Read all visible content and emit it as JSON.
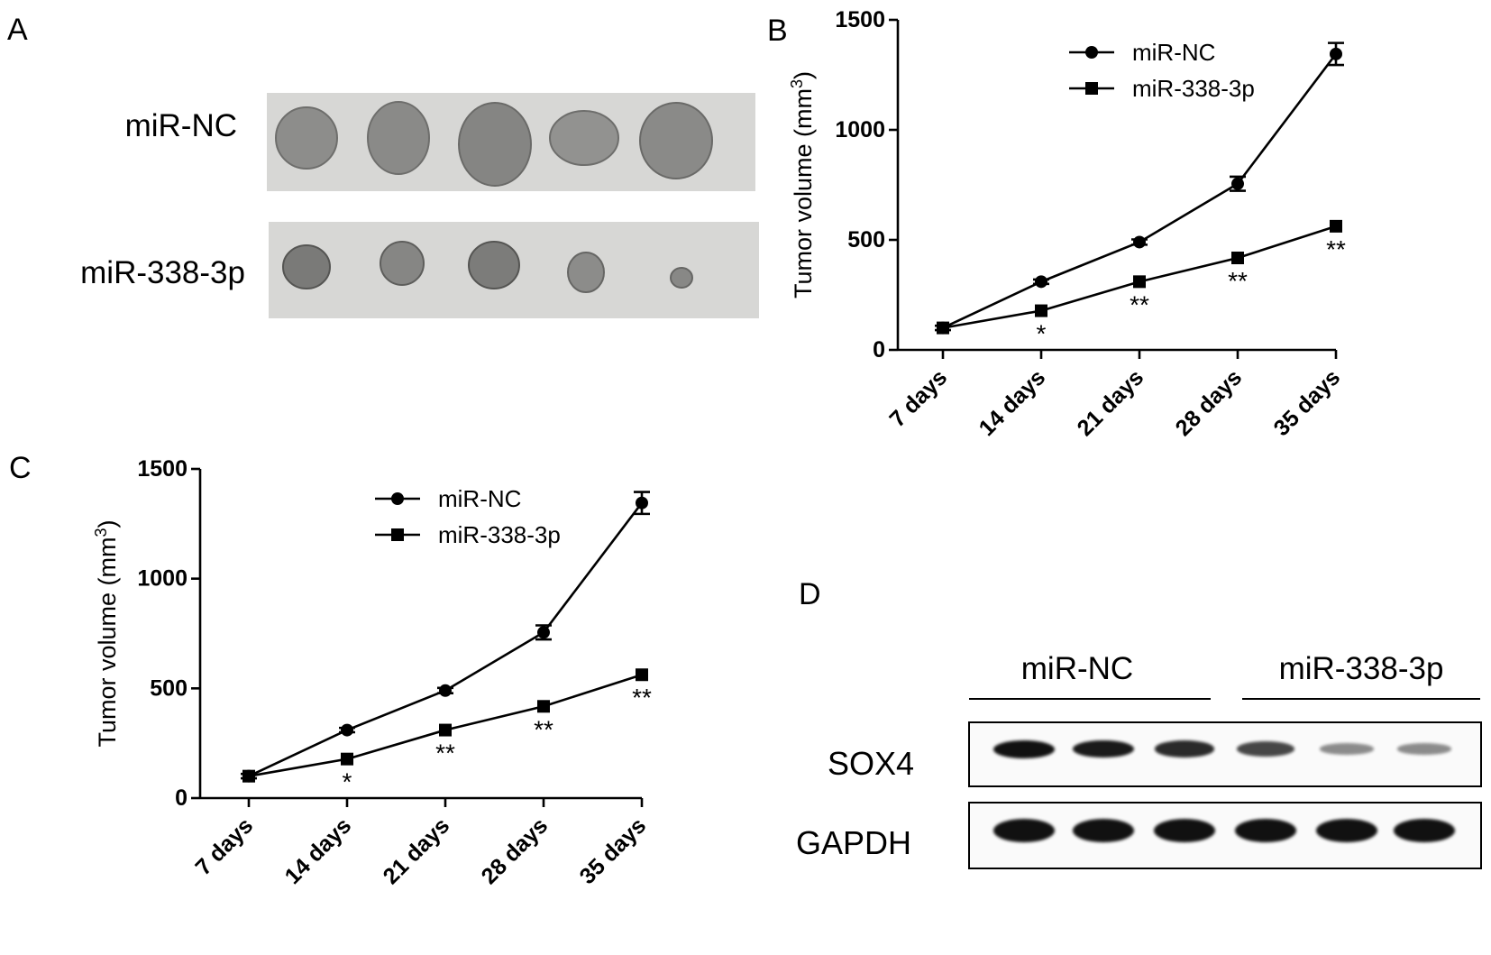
{
  "panels": {
    "A": {
      "letter": "A",
      "rows": [
        {
          "label": "miR-NC",
          "tumor_count": 5
        },
        {
          "label": "miR-338-3p",
          "tumor_count": 5
        }
      ]
    },
    "B": {
      "letter": "B"
    },
    "C": {
      "letter": "C"
    },
    "D": {
      "letter": "D",
      "groups": [
        "miR-NC",
        "miR-338-3p"
      ],
      "blots": [
        {
          "label": "SOX4",
          "band_intensity": [
            1.0,
            0.95,
            0.85,
            0.7,
            0.3,
            0.3
          ]
        },
        {
          "label": "GAPDH",
          "band_intensity": [
            1.0,
            1.0,
            1.0,
            1.0,
            1.0,
            1.0
          ]
        }
      ]
    }
  },
  "chart_data": [
    {
      "panel": "B",
      "type": "line",
      "title": "",
      "xlabel": "",
      "ylabel": "Tumor volume (mm",
      "ylabel_superscript": "3",
      "ylabel_suffix": ")",
      "categories": [
        "7 days",
        "14 days",
        "21 days",
        "28 days",
        "35 days"
      ],
      "ylim": [
        0,
        1500
      ],
      "yticks": [
        "0",
        "500",
        "1000",
        "1500"
      ],
      "ytick_values": [
        0,
        500,
        1000,
        1500
      ],
      "legend_position": "top-left",
      "series": [
        {
          "name": "miR-NC",
          "marker": "circle",
          "values": [
            100,
            310,
            490,
            755,
            1345
          ],
          "errors": [
            10,
            10,
            12,
            32,
            50
          ]
        },
        {
          "name": "miR-338-3p",
          "marker": "square",
          "values": [
            100,
            178,
            310,
            418,
            562
          ],
          "errors": [
            5,
            8,
            8,
            8,
            8
          ]
        }
      ],
      "annotations": [
        "",
        "*",
        "**",
        "**",
        "**"
      ],
      "grid": false
    },
    {
      "panel": "C",
      "type": "line",
      "title": "",
      "xlabel": "",
      "ylabel": "Tumor volume (mm",
      "ylabel_superscript": "3",
      "ylabel_suffix": ")",
      "categories": [
        "7 days",
        "14 days",
        "21 days",
        "28 days",
        "35 days"
      ],
      "ylim": [
        0,
        1500
      ],
      "yticks": [
        "0",
        "500",
        "1000",
        "1500"
      ],
      "ytick_values": [
        0,
        500,
        1000,
        1500
      ],
      "legend_position": "top-left",
      "series": [
        {
          "name": "miR-NC",
          "marker": "circle",
          "values": [
            100,
            310,
            490,
            755,
            1345
          ],
          "errors": [
            10,
            10,
            12,
            32,
            50
          ]
        },
        {
          "name": "miR-338-3p",
          "marker": "square",
          "values": [
            100,
            178,
            310,
            418,
            562
          ],
          "errors": [
            5,
            8,
            8,
            8,
            8
          ]
        }
      ],
      "annotations": [
        "",
        "*",
        "**",
        "**",
        "**"
      ],
      "grid": false
    }
  ]
}
